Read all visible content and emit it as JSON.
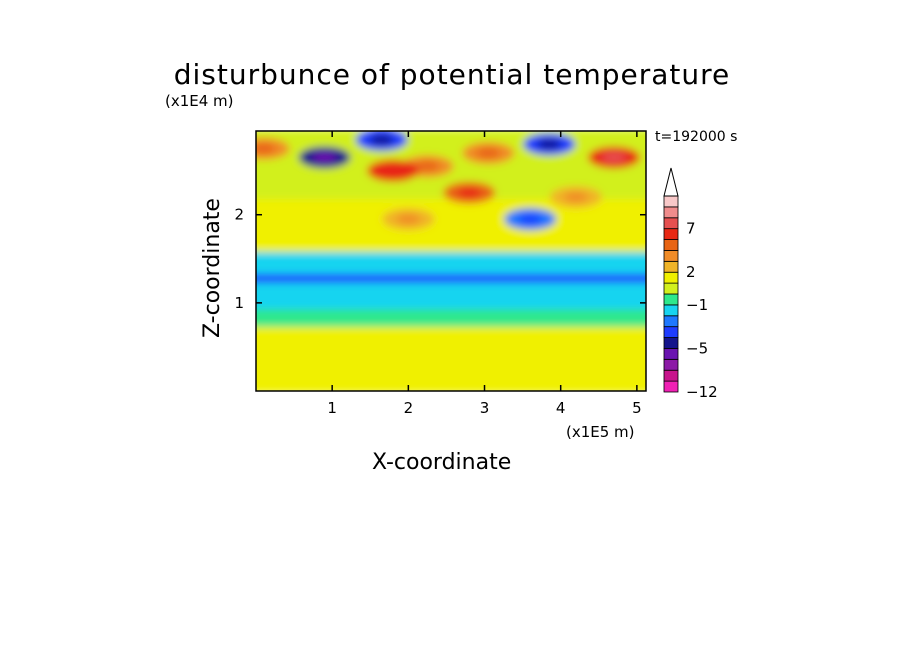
{
  "chart_data": {
    "type": "heatmap",
    "title": "disturbunce of potential temperature",
    "xlabel": "X-coordinate",
    "ylabel": "Z-coordinate",
    "x_unit": "(x1E5 m)",
    "y_unit": "(x1E4 m)",
    "time_label": "t=192000 s",
    "xlim": [
      0,
      5.12
    ],
    "ylim": [
      0,
      2.95
    ],
    "x_ticks": [
      1,
      2,
      3,
      4,
      5
    ],
    "y_ticks": [
      1,
      2
    ],
    "colorbar": {
      "levels_labeled": [
        "-12",
        "-5",
        "-1",
        "2",
        "7"
      ],
      "label_positions": [
        -12,
        -5,
        -1,
        2,
        7
      ],
      "extend_top": true,
      "bands": [
        {
          "lo": -12,
          "hi": -10,
          "color": "#f020b4"
        },
        {
          "lo": -10,
          "hi": -8,
          "color": "#c8148c"
        },
        {
          "lo": -8,
          "hi": -7,
          "color": "#8c1aa6"
        },
        {
          "lo": -7,
          "hi": -5,
          "color": "#6a14b0"
        },
        {
          "lo": -5,
          "hi": -4,
          "color": "#14148c"
        },
        {
          "lo": -4,
          "hi": -3,
          "color": "#1e3cff"
        },
        {
          "lo": -3,
          "hi": -2,
          "color": "#1e78ff"
        },
        {
          "lo": -2,
          "hi": -1,
          "color": "#18d4f0"
        },
        {
          "lo": -1,
          "hi": 0,
          "color": "#2ee88c"
        },
        {
          "lo": 0,
          "hi": 1,
          "color": "#d2f01e"
        },
        {
          "lo": 1,
          "hi": 2,
          "color": "#f0f000"
        },
        {
          "lo": 2,
          "hi": 3,
          "color": "#f0b428"
        },
        {
          "lo": 3,
          "hi": 4,
          "color": "#f08c28"
        },
        {
          "lo": 4,
          "hi": 5,
          "color": "#e86414"
        },
        {
          "lo": 5,
          "hi": 7,
          "color": "#e82814"
        },
        {
          "lo": 7,
          "hi": 9,
          "color": "#e65050"
        },
        {
          "lo": 9,
          "hi": 10,
          "color": "#f08c8c"
        },
        {
          "lo": 10,
          "hi": 11,
          "color": "#f8c8c8"
        }
      ]
    },
    "field_description": {
      "z_bands": [
        {
          "z": [
            0.0,
            0.45
          ],
          "value": 1
        },
        {
          "z": [
            0.45,
            0.75
          ],
          "value": 1.2
        },
        {
          "z": [
            0.75,
            0.95
          ],
          "value": -0.5
        },
        {
          "z": [
            0.95,
            1.25
          ],
          "value": -1.5
        },
        {
          "z": [
            1.25,
            1.35
          ],
          "value": -4
        },
        {
          "z": [
            1.35,
            1.6
          ],
          "value": -1.5
        },
        {
          "z": [
            1.6,
            2.2
          ],
          "value": 1.5
        },
        {
          "z": [
            2.2,
            2.95
          ],
          "value": 0.5
        }
      ],
      "features": [
        {
          "x": 0.9,
          "z": 2.65,
          "value": -5
        },
        {
          "x": 1.65,
          "z": 2.85,
          "value": -4
        },
        {
          "x": 2.25,
          "z": 2.55,
          "value": 3.5
        },
        {
          "x": 1.8,
          "z": 2.5,
          "value": 5
        },
        {
          "x": 2.8,
          "z": 2.25,
          "value": 4
        },
        {
          "x": 3.05,
          "z": 2.7,
          "value": 3.5
        },
        {
          "x": 3.85,
          "z": 2.8,
          "value": -3.5
        },
        {
          "x": 4.7,
          "z": 2.65,
          "value": 6
        },
        {
          "x": 0.1,
          "z": 2.75,
          "value": 3
        },
        {
          "x": 3.6,
          "z": 1.95,
          "value": -2.5
        },
        {
          "x": 2.0,
          "z": 1.95,
          "value": 2
        },
        {
          "x": 4.2,
          "z": 2.2,
          "value": 2
        }
      ]
    }
  }
}
